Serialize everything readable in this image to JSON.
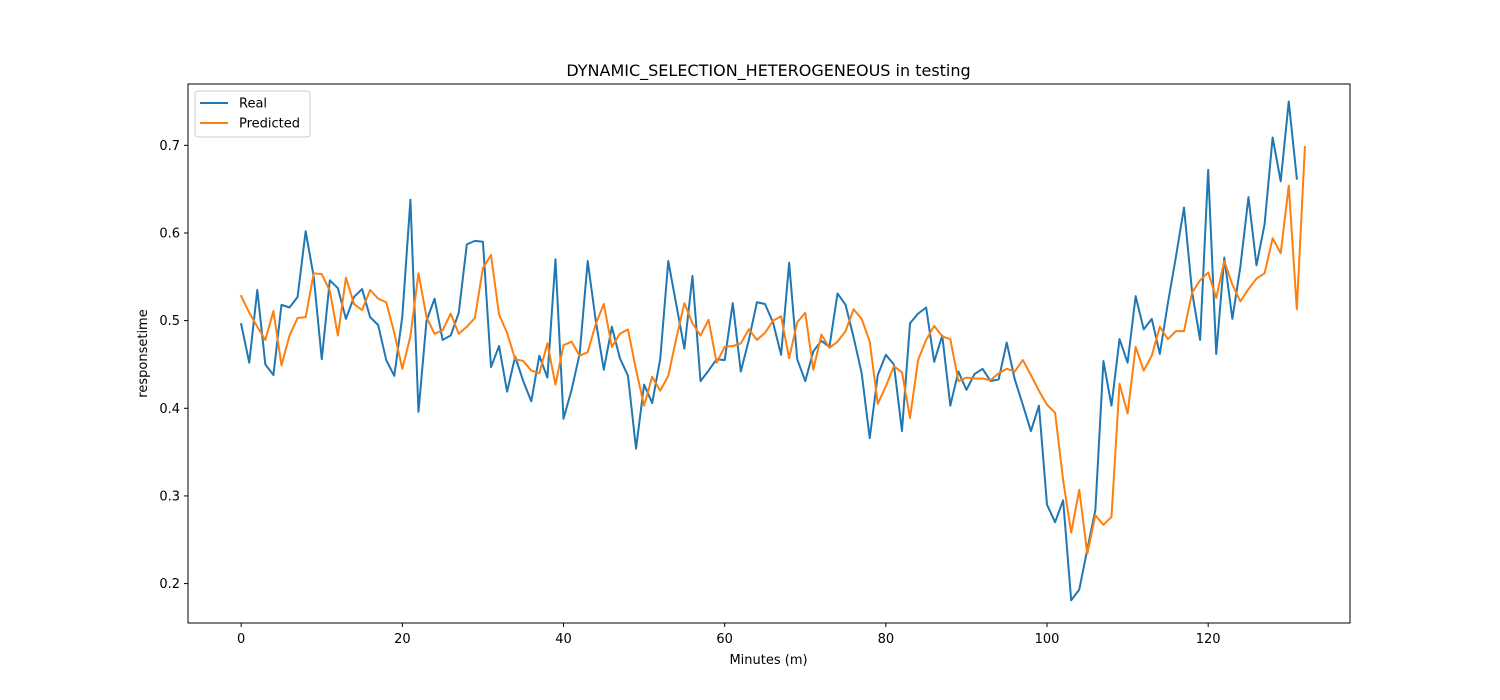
{
  "chart_data": {
    "type": "line",
    "title": "DYNAMIC_SELECTION_HETEROGENEOUS in testing",
    "xlabel": "Minutes (m)",
    "ylabel": "responsetime",
    "xlim": [
      -6.6,
      137.6
    ],
    "ylim": [
      0.155,
      0.77
    ],
    "xticks": [
      0,
      20,
      40,
      60,
      80,
      100,
      120
    ],
    "yticks": [
      0.2,
      0.3,
      0.4,
      0.5,
      0.6,
      0.7
    ],
    "xtick_labels": [
      "0",
      "20",
      "40",
      "60",
      "80",
      "100",
      "120"
    ],
    "ytick_labels": [
      "0.2",
      "0.3",
      "0.4",
      "0.5",
      "0.6",
      "0.7"
    ],
    "grid": false,
    "legend": "top-left",
    "series": [
      {
        "name": "Real",
        "color": "#1f77b4",
        "values": [
          0.496,
          0.452,
          0.535,
          0.45,
          0.438,
          0.518,
          0.515,
          0.527,
          0.602,
          0.55,
          0.456,
          0.546,
          0.537,
          0.502,
          0.527,
          0.536,
          0.504,
          0.495,
          0.455,
          0.437,
          0.505,
          0.638,
          0.396,
          0.5,
          0.525,
          0.478,
          0.483,
          0.509,
          0.587,
          0.591,
          0.59,
          0.447,
          0.471,
          0.419,
          0.459,
          0.431,
          0.408,
          0.46,
          0.435,
          0.57,
          0.388,
          0.421,
          0.462,
          0.568,
          0.5,
          0.444,
          0.493,
          0.457,
          0.437,
          0.354,
          0.427,
          0.406,
          0.456,
          0.568,
          0.518,
          0.468,
          0.551,
          0.431,
          0.443,
          0.456,
          0.455,
          0.52,
          0.442,
          0.478,
          0.521,
          0.519,
          0.498,
          0.461,
          0.566,
          0.456,
          0.431,
          0.465,
          0.477,
          0.47,
          0.531,
          0.518,
          0.481,
          0.44,
          0.366,
          0.438,
          0.461,
          0.45,
          0.374,
          0.497,
          0.508,
          0.515,
          0.453,
          0.483,
          0.403,
          0.442,
          0.421,
          0.439,
          0.445,
          0.431,
          0.433,
          0.475,
          0.433,
          0.404,
          0.374,
          0.403,
          0.29,
          0.27,
          0.295,
          0.181,
          0.193,
          0.239,
          0.284,
          0.454,
          0.403,
          0.479,
          0.452,
          0.528,
          0.49,
          0.502,
          0.462,
          0.52,
          0.573,
          0.629,
          0.533,
          0.478,
          0.672,
          0.462,
          0.572,
          0.502,
          0.562,
          0.641,
          0.563,
          0.61,
          0.709,
          0.659,
          0.75,
          0.662
        ]
      },
      {
        "name": "Predicted",
        "color": "#ff7f0e",
        "values": [
          0.528,
          0.509,
          0.493,
          0.478,
          0.511,
          0.449,
          0.483,
          0.503,
          0.504,
          0.554,
          0.553,
          0.534,
          0.483,
          0.549,
          0.519,
          0.512,
          0.535,
          0.525,
          0.521,
          0.486,
          0.445,
          0.482,
          0.554,
          0.504,
          0.485,
          0.489,
          0.508,
          0.485,
          0.493,
          0.503,
          0.56,
          0.575,
          0.507,
          0.486,
          0.456,
          0.454,
          0.443,
          0.44,
          0.474,
          0.427,
          0.472,
          0.476,
          0.46,
          0.464,
          0.496,
          0.519,
          0.47,
          0.485,
          0.49,
          0.444,
          0.403,
          0.436,
          0.42,
          0.437,
          0.48,
          0.52,
          0.497,
          0.483,
          0.501,
          0.452,
          0.47,
          0.471,
          0.474,
          0.49,
          0.478,
          0.486,
          0.5,
          0.505,
          0.457,
          0.498,
          0.509,
          0.444,
          0.484,
          0.469,
          0.476,
          0.488,
          0.513,
          0.502,
          0.476,
          0.405,
          0.425,
          0.448,
          0.441,
          0.389,
          0.455,
          0.478,
          0.494,
          0.482,
          0.479,
          0.431,
          0.435,
          0.434,
          0.434,
          0.432,
          0.44,
          0.445,
          0.442,
          0.455,
          0.438,
          0.42,
          0.404,
          0.395,
          0.318,
          0.258,
          0.307,
          0.234,
          0.278,
          0.267,
          0.276,
          0.428,
          0.394,
          0.47,
          0.443,
          0.46,
          0.493,
          0.479,
          0.488,
          0.488,
          0.532,
          0.546,
          0.555,
          0.526,
          0.568,
          0.541,
          0.522,
          0.536,
          0.548,
          0.554,
          0.594,
          0.577,
          0.654,
          0.513,
          0.698
        ]
      }
    ]
  }
}
